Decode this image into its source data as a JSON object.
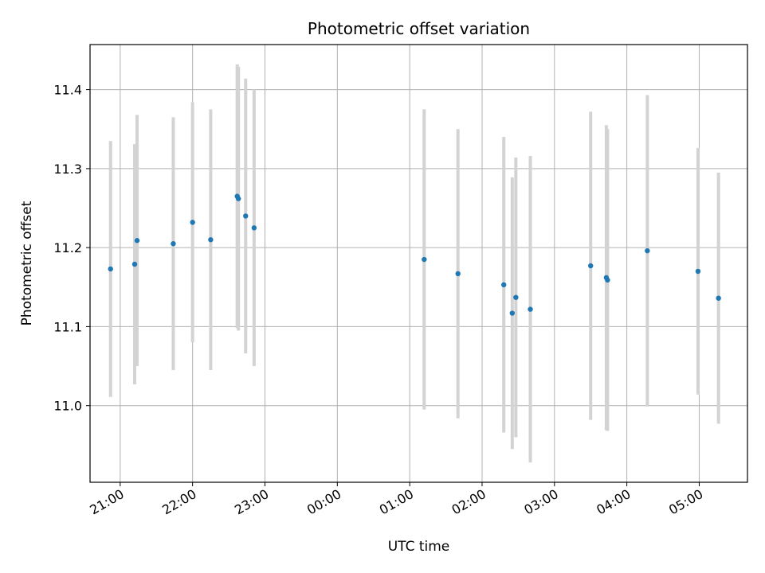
{
  "chart_data": {
    "type": "scatter",
    "title": "Photometric offset variation",
    "xlabel": "UTC time",
    "ylabel": "Photometric offset",
    "x_start_label": "20:35",
    "x_end_label": "05:40",
    "x_tick_labels": [
      "21:00",
      "22:00",
      "23:00",
      "00:00",
      "01:00",
      "02:00",
      "03:00",
      "04:00",
      "05:00"
    ],
    "ylim": [
      10.903,
      11.457
    ],
    "y_ticks": [
      11.0,
      11.1,
      11.2,
      11.3,
      11.4
    ],
    "y_tick_labels": [
      "11.0",
      "11.1",
      "11.2",
      "11.3",
      "11.4"
    ],
    "grid": true,
    "errorbar_color": "#d3d3d3",
    "marker_color": "#1f77b4",
    "points": [
      {
        "t": "20:52",
        "y": 11.173,
        "err": 0.162
      },
      {
        "t": "21:12",
        "y": 11.179,
        "err": 0.152
      },
      {
        "t": "21:14",
        "y": 11.209,
        "err": 0.159
      },
      {
        "t": "21:44",
        "y": 11.205,
        "err": 0.16
      },
      {
        "t": "22:00",
        "y": 11.232,
        "err": 0.152
      },
      {
        "t": "22:15",
        "y": 11.21,
        "err": 0.165
      },
      {
        "t": "22:37",
        "y": 11.265,
        "err": 0.167
      },
      {
        "t": "22:38",
        "y": 11.262,
        "err": 0.167
      },
      {
        "t": "22:44",
        "y": 11.24,
        "err": 0.174
      },
      {
        "t": "22:51",
        "y": 11.225,
        "err": 0.175
      },
      {
        "t": "01:12",
        "y": 11.185,
        "err": 0.19
      },
      {
        "t": "01:40",
        "y": 11.167,
        "err": 0.183
      },
      {
        "t": "02:18",
        "y": 11.153,
        "err": 0.187
      },
      {
        "t": "02:25",
        "y": 11.117,
        "err": 0.172
      },
      {
        "t": "02:28",
        "y": 11.137,
        "err": 0.177
      },
      {
        "t": "02:40",
        "y": 11.122,
        "err": 0.194
      },
      {
        "t": "03:30",
        "y": 11.177,
        "err": 0.195
      },
      {
        "t": "03:43",
        "y": 11.162,
        "err": 0.193
      },
      {
        "t": "03:44",
        "y": 11.159,
        "err": 0.191
      },
      {
        "t": "04:17",
        "y": 11.196,
        "err": 0.197
      },
      {
        "t": "04:59",
        "y": 11.17,
        "err": 0.156
      },
      {
        "t": "05:16",
        "y": 11.136,
        "err": 0.159
      }
    ]
  }
}
